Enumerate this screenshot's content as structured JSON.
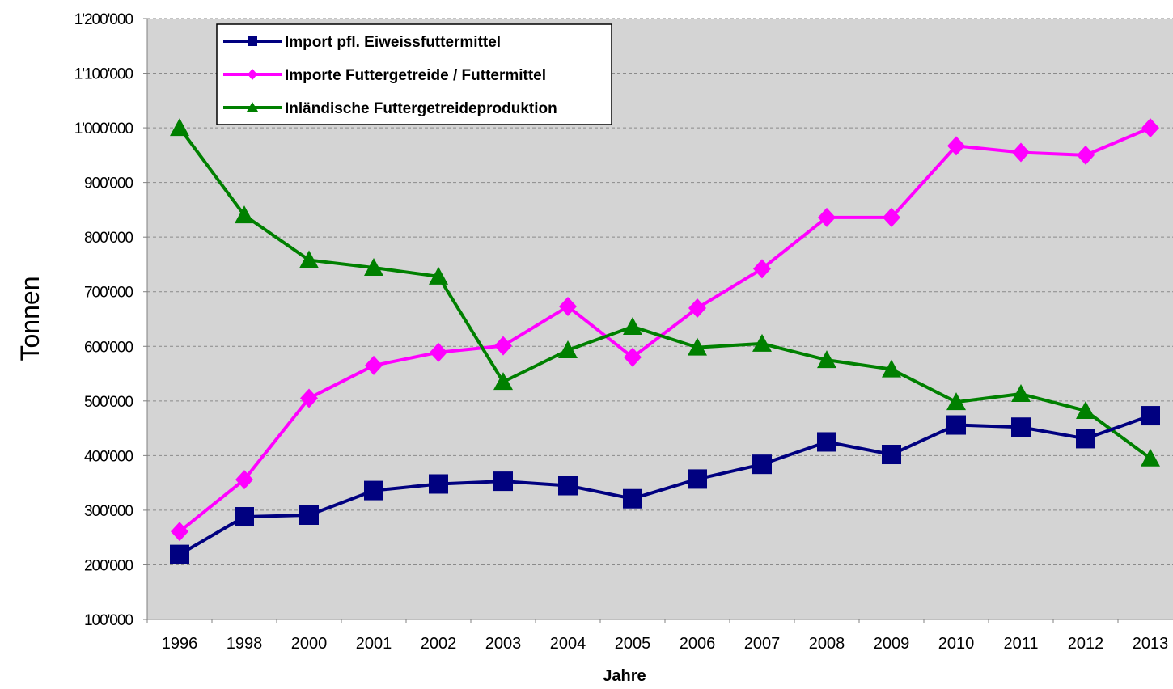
{
  "chart_data": {
    "type": "line",
    "xlabel": "Jahre",
    "ylabel": "Tonnen",
    "ylim": [
      100000,
      1200000
    ],
    "ytick_values": [
      100000,
      200000,
      300000,
      400000,
      500000,
      600000,
      700000,
      800000,
      900000,
      1000000,
      1100000,
      1200000
    ],
    "ytick_labels": [
      "100'000",
      "200'000",
      "300'000",
      "400'000",
      "500'000",
      "600'000",
      "700'000",
      "800'000",
      "900'000",
      "1'000'000",
      "1'100'000",
      "1'200'000"
    ],
    "categories": [
      "1996",
      "1998",
      "2000",
      "2001",
      "2002",
      "2003",
      "2004",
      "2005",
      "2006",
      "2007",
      "2008",
      "2009",
      "2010",
      "2011",
      "2012",
      "2013"
    ],
    "grid": true,
    "legend_position": "top-left",
    "background_color": "#d4d4d4",
    "series": [
      {
        "name": "Import pfl. Eiweissfuttermittel",
        "color": "#000080",
        "marker": "square",
        "values": [
          219000,
          288000,
          291000,
          336000,
          348000,
          353000,
          345000,
          321000,
          357000,
          384000,
          425000,
          402000,
          456000,
          452000,
          431000,
          473000
        ]
      },
      {
        "name": "Importe Futtergetreide / Futtermittel",
        "color": "#ff00ff",
        "marker": "diamond",
        "values": [
          261000,
          356000,
          505000,
          565000,
          589000,
          601000,
          673000,
          580000,
          670000,
          742000,
          836000,
          836000,
          967000,
          955000,
          950000,
          1000000
        ]
      },
      {
        "name": "Inländische Futtergetreideproduktion",
        "color": "#008000",
        "marker": "triangle",
        "values": [
          1000000,
          840000,
          758000,
          744000,
          728000,
          535000,
          593000,
          636000,
          598000,
          605000,
          575000,
          558000,
          498000,
          513000,
          482000,
          395000
        ]
      }
    ]
  }
}
